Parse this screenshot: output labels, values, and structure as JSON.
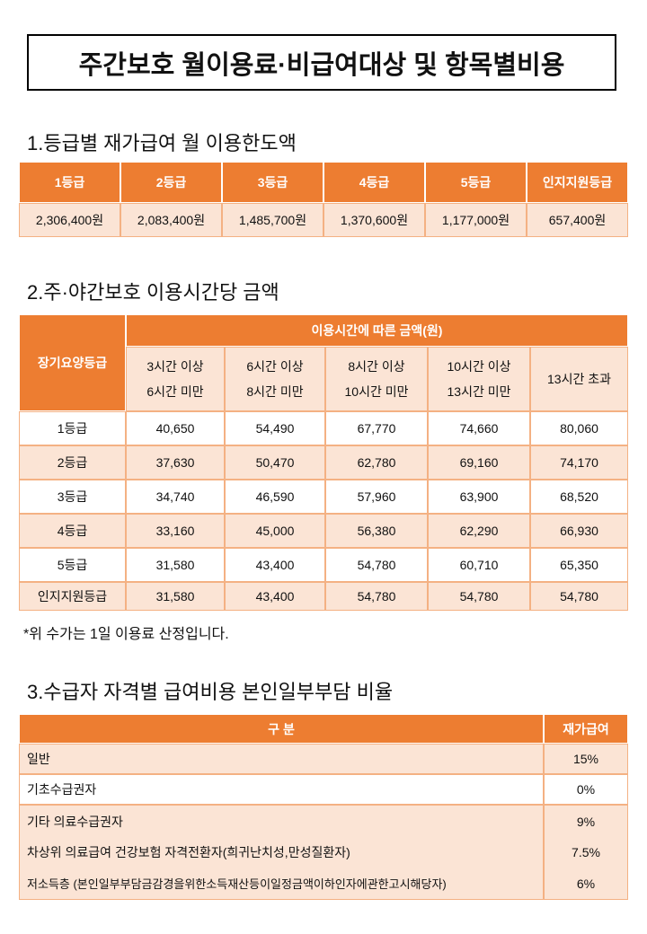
{
  "header": {
    "title": "주간보호 월이용료·비급여대상 및 항목별비용"
  },
  "section1": {
    "heading": "1.등급별 재가급여 월 이용한도액",
    "columns": [
      "1등급",
      "2등급",
      "3등급",
      "4등급",
      "5등급",
      "인지지원등급"
    ],
    "values": [
      "2,306,400원",
      "2,083,400원",
      "1,485,700원",
      "1,370,600원",
      "1,177,000원",
      "657,400원"
    ]
  },
  "section2": {
    "heading": "2.주·야간보호 이용시간당 금액",
    "grade_header": "장기요양등급",
    "group_header": "이용시간에 따른 금액(원)",
    "columns": [
      [
        "3시간 이상",
        "6시간 미만"
      ],
      [
        "6시간 이상",
        "8시간 미만"
      ],
      [
        "8시간 이상",
        "10시간 미만"
      ],
      [
        "10시간 이상",
        "13시간 미만"
      ],
      [
        "13시간 초과"
      ]
    ],
    "rows": [
      [
        "1등급",
        "40,650",
        "54,490",
        "67,770",
        "74,660",
        "80,060"
      ],
      [
        "2등급",
        "37,630",
        "50,470",
        "62,780",
        "69,160",
        "74,170"
      ],
      [
        "3등급",
        "34,740",
        "46,590",
        "57,960",
        "63,900",
        "68,520"
      ],
      [
        "4등급",
        "33,160",
        "45,000",
        "56,380",
        "62,290",
        "66,930"
      ],
      [
        "5등급",
        "31,580",
        "43,400",
        "54,780",
        "60,710",
        "65,350"
      ],
      [
        "인지지원등급",
        "31,580",
        "43,400",
        "54,780",
        "54,780",
        "54,780"
      ]
    ],
    "note": "*위 수가는 1일 이용료 산정입니다."
  },
  "section3": {
    "heading": "3.수급자 자격별 급여비용 본인일부부담 비율",
    "columns": [
      "구 분",
      "재가급여"
    ],
    "rows": [
      [
        "일반",
        "15%"
      ],
      [
        "기초수급권자",
        "0%"
      ],
      [
        "기타 의료수급권자",
        "9%"
      ],
      [
        "차상위 의료급여 건강보험 자격전환자(희귀난치성,만성질환자)",
        "7.5%"
      ],
      [
        "저소득층 (본인일부부담금감경을위한소득재산등이일정금액이하인자에관한고시해당자)",
        "6%"
      ]
    ]
  }
}
